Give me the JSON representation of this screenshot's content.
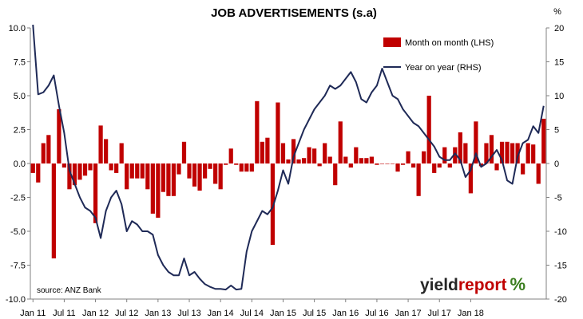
{
  "chart_data": {
    "type": "bar",
    "title": "JOB ADVERTISEMENTS (s.a)",
    "left_unit": "",
    "right_unit": "%",
    "ylim_left": [
      -10,
      10
    ],
    "ylim_right": [
      -20,
      20
    ],
    "yticks_left": [
      "10.0",
      "7.5",
      "5.0",
      "2.5",
      "0.0",
      "-2.5",
      "-5.0",
      "-7.5",
      "-10.0"
    ],
    "yticks_right": [
      "20",
      "15",
      "10",
      "5",
      "0",
      "-5",
      "-10",
      "-15",
      "-20"
    ],
    "x_tick_labels": [
      "Jan 11",
      "Jul 11",
      "Jan 12",
      "Jul 12",
      "Jan 13",
      "Jul 13",
      "Jan 14",
      "Jul 14",
      "Jan 15",
      "Jul 15",
      "Jan 16",
      "Jul 16",
      "Jan 17",
      "Jul 17",
      "Jan 18"
    ],
    "x_start": "Jan 2011",
    "x_end": "Feb 2018",
    "legend_position": "top-right",
    "grid": false,
    "series": [
      {
        "name": "Month on month (LHS)",
        "kind": "bar",
        "axis": "left",
        "color": "#c00000",
        "values": [
          -0.7,
          -1.4,
          1.5,
          2.1,
          -7.0,
          4.0,
          -0.3,
          -1.9,
          -1.6,
          -1.2,
          -0.9,
          -0.5,
          -4.4,
          2.8,
          1.8,
          -0.5,
          -0.7,
          1.5,
          -1.9,
          -1.1,
          -1.1,
          -1.1,
          -1.9,
          -3.7,
          -4.0,
          -2.1,
          -2.4,
          -2.4,
          -0.8,
          1.6,
          -1.1,
          -1.7,
          -2.0,
          -1.1,
          -0.4,
          -1.5,
          -1.9,
          -0.1,
          1.1,
          -0.1,
          -0.6,
          -0.6,
          -0.6,
          4.6,
          1.6,
          1.9,
          -6.0,
          4.5,
          1.5,
          0.3,
          1.8,
          0.3,
          0.4,
          1.2,
          1.1,
          -0.2,
          1.5,
          0.5,
          -1.6,
          3.1,
          0.5,
          -0.3,
          1.2,
          0.4,
          0.4,
          0.5,
          -0.1,
          0.0,
          0.0,
          0.0,
          -0.6,
          -0.1,
          0.9,
          -0.3,
          -2.4,
          0.9,
          5.0,
          -0.7,
          -0.3,
          1.2,
          -0.3,
          1.2,
          2.3,
          1.5,
          -2.2,
          3.1,
          -0.2,
          1.5,
          2.1,
          -0.5,
          1.6,
          1.6,
          1.5,
          1.5,
          -0.8,
          1.5,
          1.4,
          -1.5,
          3.3
        ]
      },
      {
        "name": "Year on year (RHS)",
        "kind": "line",
        "axis": "right",
        "color": "#1f2a57",
        "values": [
          20.5,
          10.2,
          10.5,
          11.5,
          13.0,
          8.5,
          4.5,
          -1.0,
          -3.0,
          -5.0,
          -6.5,
          -7.0,
          -8.0,
          -11.0,
          -7.0,
          -5.0,
          -4.0,
          -6.0,
          -10.0,
          -8.5,
          -9.0,
          -10.0,
          -10.0,
          -10.5,
          -13.5,
          -15.0,
          -16.0,
          -16.5,
          -16.5,
          -14.0,
          -16.5,
          -16.0,
          -17.0,
          -17.8,
          -18.2,
          -18.5,
          -18.5,
          -18.6,
          -18.0,
          -18.6,
          -18.5,
          -13.0,
          -10.0,
          -8.5,
          -7.0,
          -7.5,
          -6.5,
          -4.0,
          -1.0,
          -3.0,
          1.0,
          3.0,
          5.0,
          6.5,
          8.0,
          9.0,
          10.0,
          11.5,
          11.0,
          11.5,
          12.5,
          13.5,
          12.0,
          9.5,
          9.0,
          10.5,
          11.5,
          14.0,
          12.0,
          10.0,
          9.5,
          8.0,
          7.0,
          6.0,
          5.5,
          4.5,
          3.5,
          2.5,
          1.0,
          0.5,
          0.5,
          1.5,
          0.5,
          -2.0,
          -1.0,
          1.5,
          -0.5,
          0.0,
          1.0,
          2.0,
          0.5,
          -2.5,
          -3.0,
          1.0,
          3.0,
          3.5,
          5.5,
          4.5,
          8.5
        ]
      }
    ]
  },
  "annotations": {
    "source": "source: ANZ Bank"
  },
  "brand": {
    "part1": "yield",
    "part2": "report",
    "symbol": "%"
  }
}
